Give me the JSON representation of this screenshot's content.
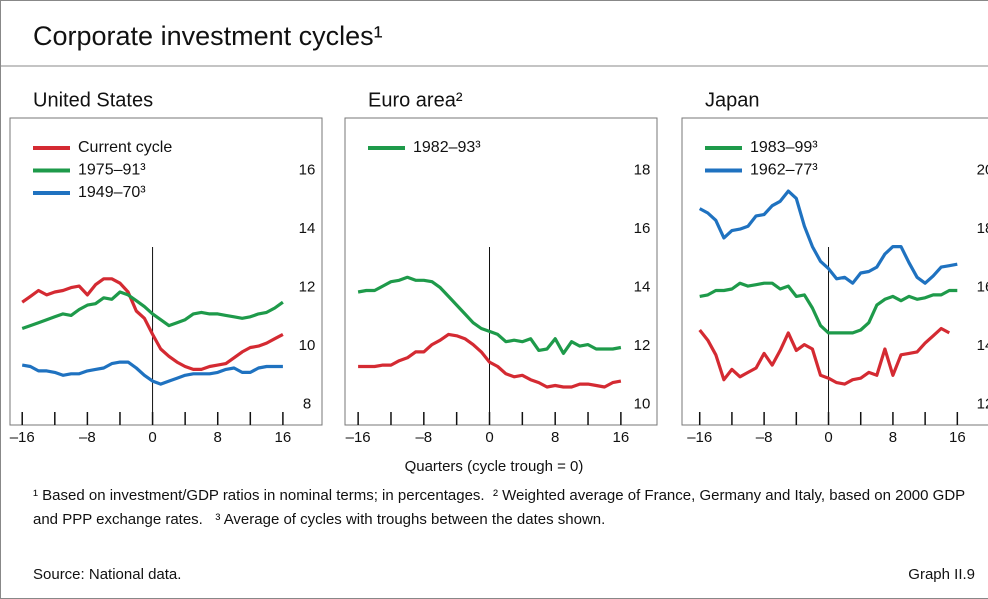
{
  "title": "Corporate investment cycles¹",
  "xlabel": "Quarters (cycle trough = 0)",
  "footnotes": [
    "¹ Based on investment/GDP ratios in nominal terms; in percentages.",
    "² Weighted average of France, Germany and Italy, based on 2000 GDP and PPP exchange rates.",
    "³ Average of cycles with troughs between the dates shown."
  ],
  "source": "Source: National data.",
  "graph_label": "Graph II.9",
  "chart_data": [
    {
      "type": "line",
      "title": "United States",
      "x": [
        -16,
        -15,
        -14,
        -13,
        -12,
        -11,
        -10,
        -9,
        -8,
        -7,
        -6,
        -5,
        -4,
        -3,
        -2,
        -1,
        0,
        1,
        2,
        3,
        4,
        5,
        6,
        7,
        8,
        9,
        10,
        11,
        12,
        13,
        14,
        15,
        16
      ],
      "xlim": [
        -17.5,
        20.8
      ],
      "ylim": [
        7.3,
        17.8
      ],
      "xticks": [
        {
          "value": -16,
          "label": "–16"
        },
        {
          "value": -8,
          "label": "–8"
        },
        0,
        8,
        16
      ],
      "xminorticks": [
        -12,
        -4,
        4,
        12
      ],
      "yticks": [
        8,
        10,
        12,
        14,
        16
      ],
      "reference_x": 0,
      "series": [
        {
          "name": "Current cycle",
          "color": "#d42a32",
          "values": [
            11.5,
            11.7,
            11.9,
            11.75,
            11.85,
            11.9,
            12.0,
            12.05,
            11.75,
            12.1,
            12.3,
            12.3,
            12.15,
            11.85,
            11.2,
            10.95,
            10.4,
            9.9,
            9.65,
            9.45,
            9.3,
            9.2,
            9.2,
            9.3,
            9.35,
            9.4,
            9.6,
            9.8,
            9.95,
            10.0,
            10.1,
            10.25,
            10.4
          ]
        },
        {
          "name": "1975–91³",
          "color": "#1e9a4a",
          "values": [
            10.6,
            10.7,
            10.8,
            10.9,
            11.0,
            11.1,
            11.05,
            11.25,
            11.4,
            11.45,
            11.65,
            11.6,
            11.85,
            11.75,
            11.55,
            11.35,
            11.1,
            10.9,
            10.7,
            10.8,
            10.9,
            11.1,
            11.15,
            11.1,
            11.1,
            11.05,
            11.0,
            10.95,
            11.0,
            11.1,
            11.15,
            11.3,
            11.5
          ]
        },
        {
          "name": "1949–70³",
          "color": "#1f72c0",
          "values": [
            9.35,
            9.3,
            9.15,
            9.15,
            9.1,
            9.0,
            9.05,
            9.05,
            9.15,
            9.2,
            9.25,
            9.4,
            9.45,
            9.45,
            9.25,
            9.0,
            8.8,
            8.7,
            8.8,
            8.9,
            9.0,
            9.05,
            9.05,
            9.05,
            9.1,
            9.2,
            9.25,
            9.1,
            9.1,
            9.25,
            9.3,
            9.3,
            9.3
          ]
        }
      ]
    },
    {
      "type": "line",
      "title": "Euro area²",
      "x": [
        -16,
        -15,
        -14,
        -13,
        -12,
        -11,
        -10,
        -9,
        -8,
        -7,
        -6,
        -5,
        -4,
        -3,
        -2,
        -1,
        0,
        1,
        2,
        3,
        4,
        5,
        6,
        7,
        8,
        9,
        10,
        11,
        12,
        13,
        14,
        15,
        16
      ],
      "xlim": [
        -17.6,
        20.4
      ],
      "ylim": [
        9.3,
        19.8
      ],
      "xticks": [
        {
          "value": -16,
          "label": "–16"
        },
        {
          "value": -8,
          "label": "–8"
        },
        0,
        8,
        16
      ],
      "xminorticks": [
        -12,
        -4,
        4,
        12
      ],
      "yticks": [
        10,
        12,
        14,
        16,
        18
      ],
      "reference_x": 0,
      "series": [
        {
          "name": "1982–93³",
          "color": "#1e9a4a",
          "values": [
            13.85,
            13.9,
            13.9,
            14.05,
            14.2,
            14.25,
            14.35,
            14.25,
            14.25,
            14.2,
            14.0,
            13.7,
            13.4,
            13.1,
            12.8,
            12.6,
            12.5,
            12.4,
            12.15,
            12.2,
            12.15,
            12.25,
            11.85,
            11.9,
            12.25,
            11.75,
            12.15,
            12.0,
            12.05,
            11.9,
            11.9,
            11.9,
            11.95
          ]
        },
        {
          "color": "#d42a32",
          "values": [
            11.3,
            11.3,
            11.3,
            11.35,
            11.35,
            11.5,
            11.6,
            11.8,
            11.8,
            12.05,
            12.2,
            12.4,
            12.35,
            12.25,
            12.05,
            11.8,
            11.45,
            11.3,
            11.05,
            10.95,
            11.0,
            10.85,
            10.75,
            10.6,
            10.65,
            10.6,
            10.6,
            10.7,
            10.7,
            10.65,
            10.6,
            10.75,
            10.8
          ]
        }
      ]
    },
    {
      "type": "line",
      "title": "Japan",
      "x": [
        -16,
        -15,
        -14,
        -13,
        -12,
        -11,
        -10,
        -9,
        -8,
        -7,
        -6,
        -5,
        -4,
        -3,
        -2,
        -1,
        0,
        1,
        2,
        3,
        4,
        5,
        6,
        7,
        8,
        9,
        10,
        11,
        12,
        13,
        14,
        15,
        16
      ],
      "xlim": [
        -18.2,
        21.3
      ],
      "ylim": [
        11.3,
        21.8
      ],
      "xticks": [
        {
          "value": -16,
          "label": "–16"
        },
        {
          "value": -8,
          "label": "–8"
        },
        0,
        8,
        16
      ],
      "xminorticks": [
        -12,
        -4,
        4,
        12
      ],
      "yticks": [
        12,
        14,
        16,
        18,
        20
      ],
      "reference_x": 0,
      "series": [
        {
          "name": "1983–99³",
          "color": "#1e9a4a",
          "values": [
            15.7,
            15.75,
            15.9,
            15.9,
            15.95,
            16.15,
            16.05,
            16.1,
            16.15,
            16.15,
            15.95,
            16.05,
            15.7,
            15.75,
            15.3,
            14.7,
            14.45,
            14.45,
            14.45,
            14.45,
            14.55,
            14.8,
            15.4,
            15.6,
            15.7,
            15.55,
            15.7,
            15.6,
            15.65,
            15.75,
            15.75,
            15.9,
            15.9
          ]
        },
        {
          "name": "1962–77³",
          "color": "#1f72c0",
          "values": [
            18.7,
            18.55,
            18.3,
            17.7,
            17.95,
            18.0,
            18.1,
            18.45,
            18.5,
            18.8,
            18.95,
            19.3,
            19.05,
            18.1,
            17.4,
            16.9,
            16.65,
            16.3,
            16.35,
            16.15,
            16.5,
            16.55,
            16.7,
            17.15,
            17.4,
            17.4,
            16.85,
            16.35,
            16.15,
            16.4,
            16.7,
            16.75,
            16.8
          ]
        },
        {
          "color": "#d42a32",
          "values": [
            14.55,
            14.2,
            13.7,
            12.85,
            13.2,
            12.95,
            13.1,
            13.25,
            13.75,
            13.35,
            13.85,
            14.45,
            13.85,
            14.05,
            13.9,
            13.0,
            12.9,
            12.75,
            12.7,
            12.85,
            12.9,
            13.1,
            13.0,
            13.9,
            13.0,
            13.7,
            13.75,
            13.8,
            14.1,
            14.35,
            14.6,
            14.45,
            null
          ]
        }
      ]
    }
  ]
}
